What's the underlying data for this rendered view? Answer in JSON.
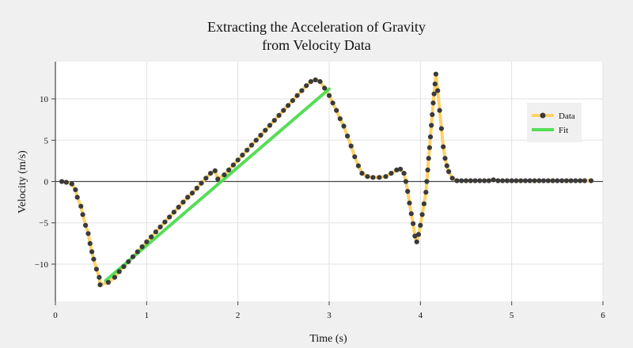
{
  "chart_data": {
    "type": "line",
    "title_lines": [
      "Extracting the Acceleration of Gravity",
      "from Velocity Data"
    ],
    "xlabel": "Time (s)",
    "ylabel": "Velocity (m/s)",
    "xlim": [
      0,
      6
    ],
    "ylim": [
      -14.5,
      14.5
    ],
    "xticks": [
      0,
      1,
      2,
      3,
      4,
      5,
      6
    ],
    "xtick_labels": [
      "0",
      "1",
      "2",
      "3",
      "4",
      "5",
      "6"
    ],
    "yticks": [
      -10,
      -5,
      0,
      5,
      10
    ],
    "ytick_labels": [
      "−10",
      "−5",
      "0",
      "5",
      "10"
    ],
    "grid": true,
    "legend": {
      "position": "top-right",
      "entries": [
        {
          "name": "Data",
          "color": "#ffd166",
          "marker_color": "#3a3a3a"
        },
        {
          "name": "Fit",
          "color": "#55dd55"
        }
      ]
    },
    "series": [
      {
        "name": "Data",
        "line_color": "#ffd166",
        "marker_color": "#3a3a3a",
        "points": [
          [
            0.07,
            0.0
          ],
          [
            0.12,
            -0.1
          ],
          [
            0.18,
            -0.3
          ],
          [
            0.22,
            -1.0
          ],
          [
            0.24,
            -1.9
          ],
          [
            0.28,
            -3.0
          ],
          [
            0.3,
            -4.0
          ],
          [
            0.33,
            -5.3
          ],
          [
            0.36,
            -6.3
          ],
          [
            0.38,
            -7.5
          ],
          [
            0.4,
            -8.5
          ],
          [
            0.42,
            -9.4
          ],
          [
            0.45,
            -10.6
          ],
          [
            0.48,
            -11.6
          ],
          [
            0.49,
            -12.5
          ],
          [
            0.58,
            -12.2
          ],
          [
            0.65,
            -11.6
          ],
          [
            0.7,
            -10.9
          ],
          [
            0.75,
            -10.3
          ],
          [
            0.8,
            -9.7
          ],
          [
            0.85,
            -9.1
          ],
          [
            0.9,
            -8.5
          ],
          [
            0.95,
            -7.9
          ],
          [
            1.0,
            -7.3
          ],
          [
            1.05,
            -6.7
          ],
          [
            1.1,
            -6.1
          ],
          [
            1.15,
            -5.5
          ],
          [
            1.2,
            -4.9
          ],
          [
            1.25,
            -4.3
          ],
          [
            1.3,
            -3.7
          ],
          [
            1.35,
            -3.1
          ],
          [
            1.4,
            -2.5
          ],
          [
            1.45,
            -1.9
          ],
          [
            1.5,
            -1.4
          ],
          [
            1.55,
            -0.8
          ],
          [
            1.6,
            -0.2
          ],
          [
            1.65,
            0.4
          ],
          [
            1.7,
            1.0
          ],
          [
            1.75,
            1.3
          ],
          [
            1.78,
            0.3
          ],
          [
            1.85,
            0.8
          ],
          [
            1.9,
            1.4
          ],
          [
            1.95,
            2.0
          ],
          [
            2.0,
            2.6
          ],
          [
            2.05,
            3.2
          ],
          [
            2.1,
            3.8
          ],
          [
            2.15,
            4.4
          ],
          [
            2.2,
            5.0
          ],
          [
            2.25,
            5.6
          ],
          [
            2.3,
            6.2
          ],
          [
            2.35,
            6.8
          ],
          [
            2.4,
            7.4
          ],
          [
            2.45,
            8.0
          ],
          [
            2.5,
            8.6
          ],
          [
            2.55,
            9.2
          ],
          [
            2.6,
            9.8
          ],
          [
            2.65,
            10.4
          ],
          [
            2.7,
            11.0
          ],
          [
            2.75,
            11.6
          ],
          [
            2.8,
            12.1
          ],
          [
            2.85,
            12.3
          ],
          [
            2.9,
            12.1
          ],
          [
            2.95,
            11.3
          ],
          [
            3.0,
            10.4
          ],
          [
            3.04,
            9.5
          ],
          [
            3.08,
            8.6
          ],
          [
            3.12,
            7.6
          ],
          [
            3.16,
            6.7
          ],
          [
            3.2,
            5.5
          ],
          [
            3.24,
            4.3
          ],
          [
            3.28,
            3.0
          ],
          [
            3.32,
            1.9
          ],
          [
            3.36,
            1.0
          ],
          [
            3.42,
            0.6
          ],
          [
            3.48,
            0.5
          ],
          [
            3.55,
            0.5
          ],
          [
            3.62,
            0.6
          ],
          [
            3.68,
            1.0
          ],
          [
            3.74,
            1.4
          ],
          [
            3.78,
            1.5
          ],
          [
            3.82,
            1.0
          ],
          [
            3.84,
            0.0
          ],
          [
            3.86,
            -1.2
          ],
          [
            3.88,
            -2.6
          ],
          [
            3.9,
            -3.9
          ],
          [
            3.92,
            -5.1
          ],
          [
            3.94,
            -6.6
          ],
          [
            3.96,
            -7.3
          ],
          [
            3.98,
            -6.4
          ],
          [
            4.0,
            -5.3
          ],
          [
            4.02,
            -4.0
          ],
          [
            4.04,
            -2.7
          ],
          [
            4.06,
            -1.3
          ],
          [
            4.07,
            0.0
          ],
          [
            4.08,
            1.4
          ],
          [
            4.09,
            2.8
          ],
          [
            4.1,
            4.1
          ],
          [
            4.11,
            5.4
          ],
          [
            4.12,
            6.8
          ],
          [
            4.13,
            8.1
          ],
          [
            4.14,
            9.5
          ],
          [
            4.15,
            10.6
          ],
          [
            4.16,
            11.8
          ],
          [
            4.17,
            13.0
          ],
          [
            4.19,
            11.0
          ],
          [
            4.21,
            8.6
          ],
          [
            4.23,
            6.4
          ],
          [
            4.25,
            4.2
          ],
          [
            4.27,
            2.8
          ],
          [
            4.29,
            1.9
          ],
          [
            4.31,
            1.2
          ],
          [
            4.35,
            0.4
          ],
          [
            4.4,
            0.1
          ],
          [
            4.45,
            0.1
          ],
          [
            4.5,
            0.1
          ],
          [
            4.55,
            0.1
          ],
          [
            4.6,
            0.1
          ],
          [
            4.65,
            0.1
          ],
          [
            4.7,
            0.1
          ],
          [
            4.75,
            0.1
          ],
          [
            4.8,
            0.2
          ],
          [
            4.85,
            0.1
          ],
          [
            4.9,
            0.1
          ],
          [
            4.95,
            0.1
          ],
          [
            5.0,
            0.1
          ],
          [
            5.05,
            0.1
          ],
          [
            5.1,
            0.1
          ],
          [
            5.15,
            0.1
          ],
          [
            5.2,
            0.1
          ],
          [
            5.25,
            0.1
          ],
          [
            5.3,
            0.1
          ],
          [
            5.35,
            0.1
          ],
          [
            5.4,
            0.1
          ],
          [
            5.45,
            0.1
          ],
          [
            5.5,
            0.1
          ],
          [
            5.55,
            0.1
          ],
          [
            5.6,
            0.1
          ],
          [
            5.65,
            0.1
          ],
          [
            5.7,
            0.1
          ],
          [
            5.75,
            0.1
          ],
          [
            5.8,
            0.1
          ],
          [
            5.87,
            0.1
          ]
        ]
      },
      {
        "name": "Fit",
        "line_color": "#55dd55",
        "points": [
          [
            0.55,
            -12.0
          ],
          [
            3.0,
            11.2
          ]
        ]
      }
    ]
  }
}
